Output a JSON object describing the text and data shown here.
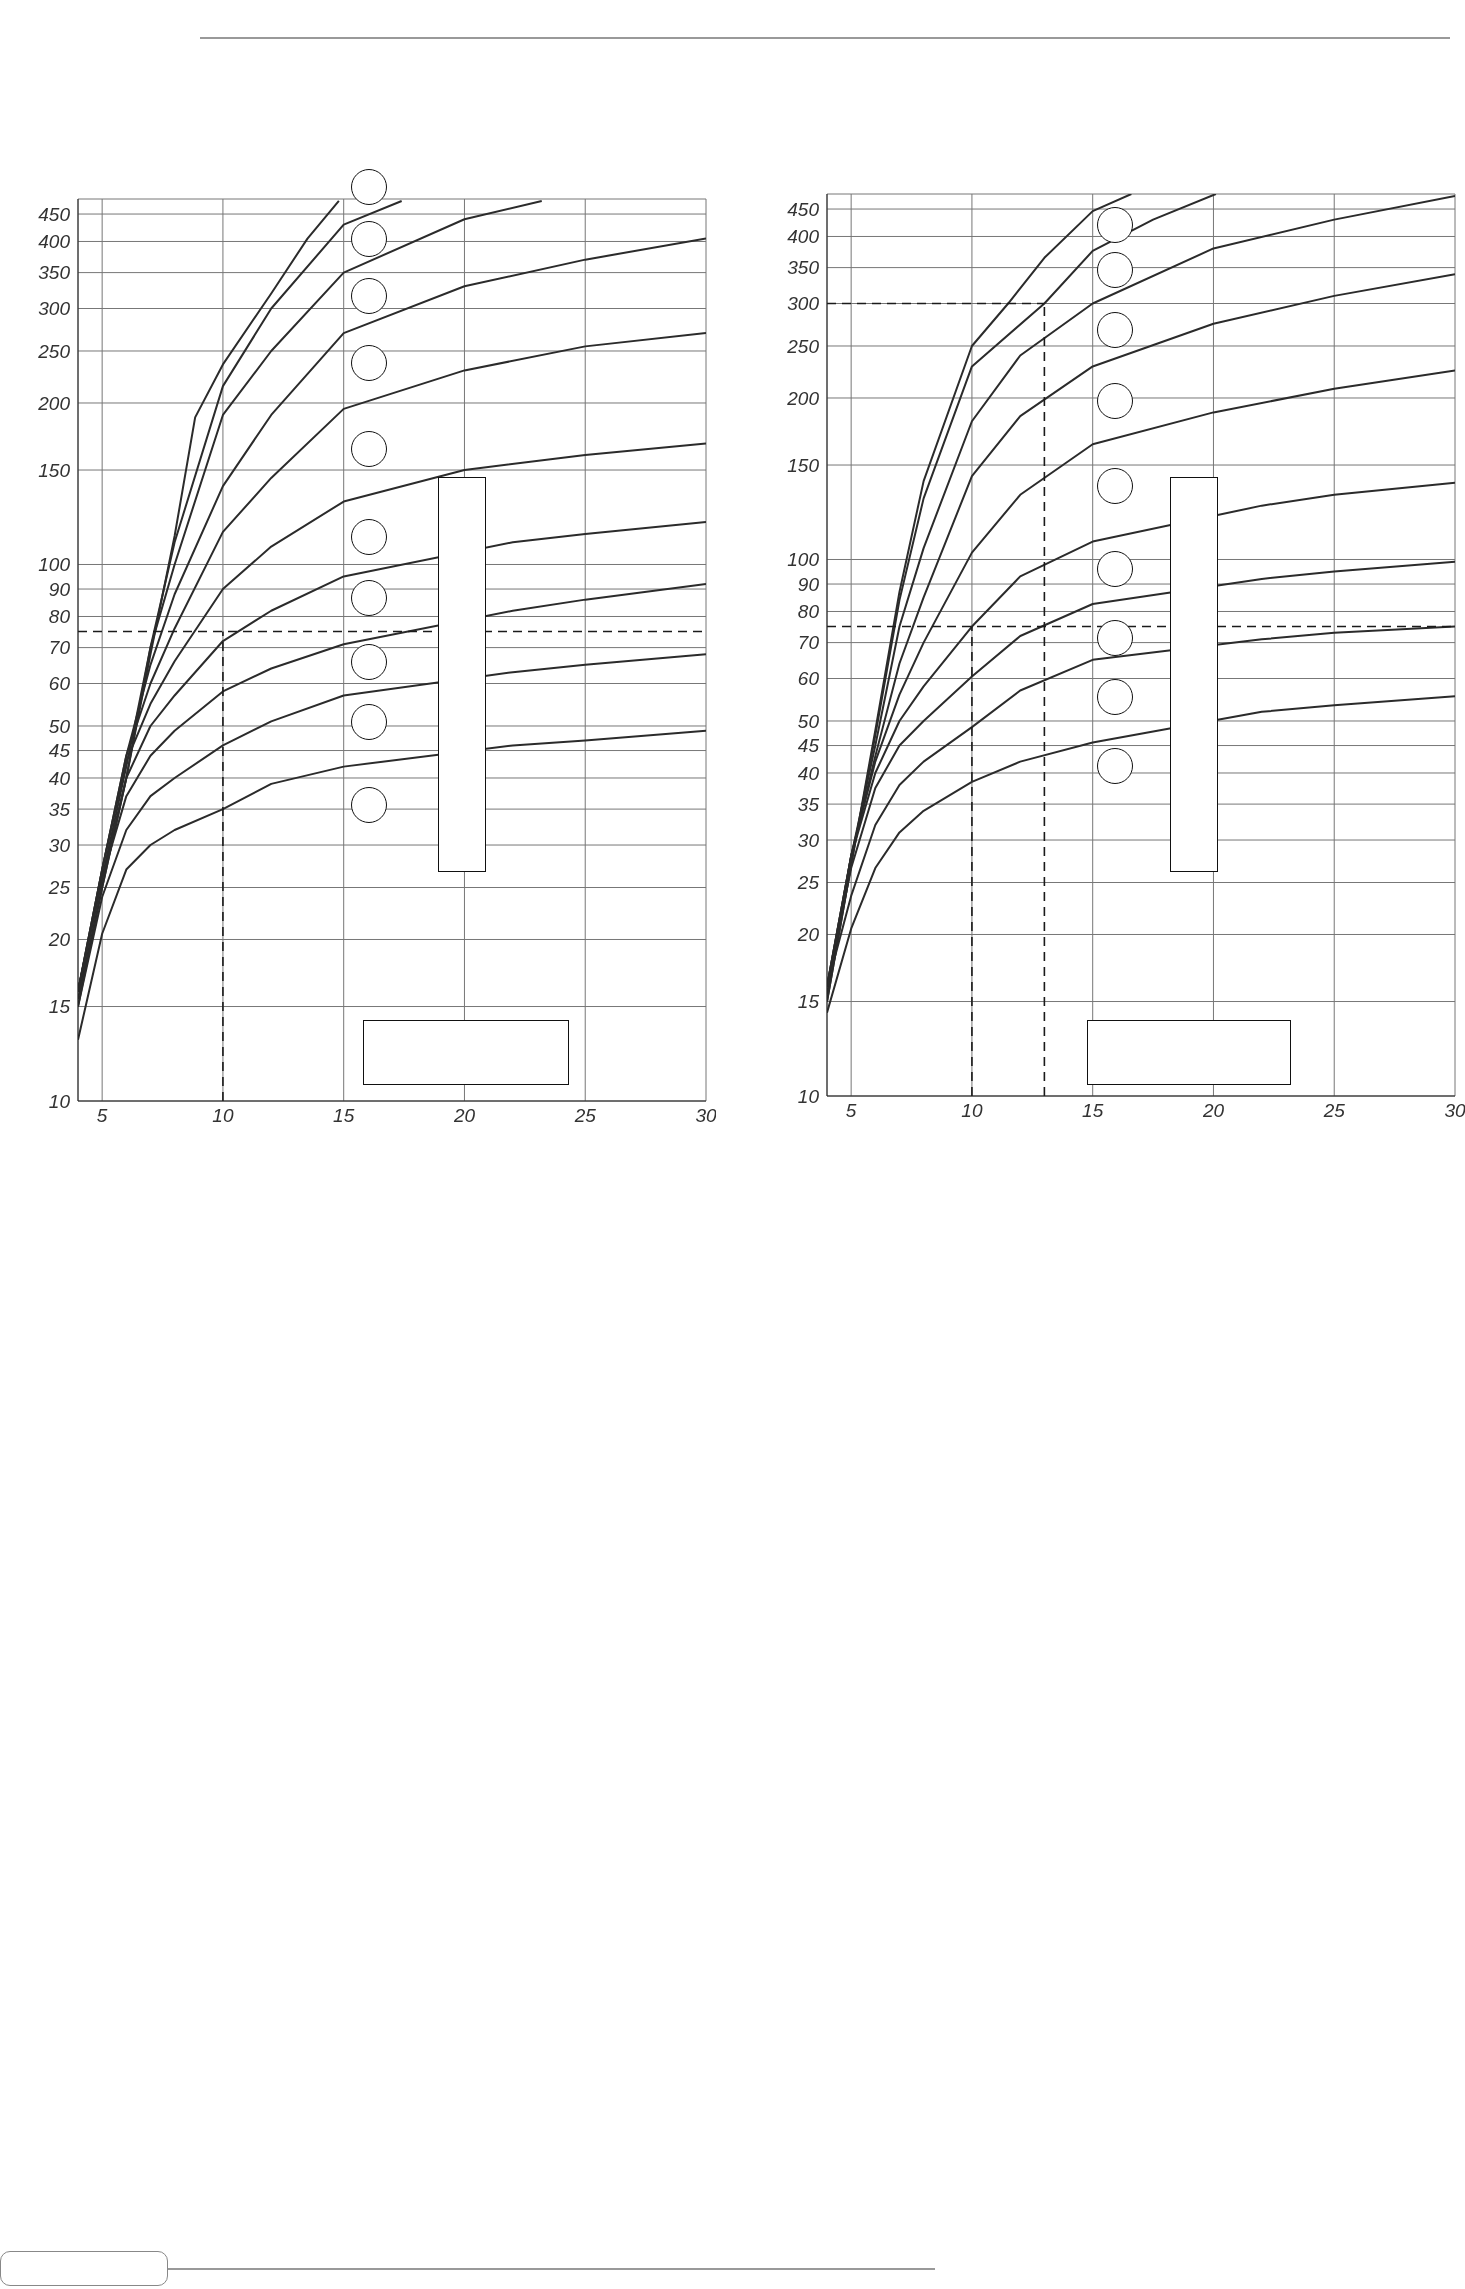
{
  "chart_data": [
    {
      "type": "line",
      "xlim": [
        4,
        30
      ],
      "xticks": [
        5,
        10,
        15,
        20,
        25,
        30
      ],
      "ylim": [
        10,
        480
      ],
      "yticks": [
        10,
        15,
        20,
        25,
        30,
        35,
        40,
        45,
        50,
        60,
        70,
        80,
        90,
        100,
        150,
        200,
        250,
        300,
        350,
        400,
        450
      ],
      "log": "y",
      "grid": true,
      "marker": "none",
      "line_style": "solid",
      "series": [
        {
          "color": "#2b2b2b",
          "x": [
            4,
            5,
            6,
            7,
            8,
            8.85,
            10,
            12,
            13.5,
            14.8
          ],
          "values": [
            15,
            25,
            40,
            68,
            113,
            188,
            236,
            320,
            405,
            476
          ]
        },
        {
          "color": "#2b2b2b",
          "x": [
            4,
            5,
            6,
            7,
            8,
            10,
            12,
            15,
            17.4
          ],
          "values": [
            15.5,
            25,
            40,
            70,
            110,
            215,
            300,
            430,
            476
          ]
        },
        {
          "color": "#2b2b2b",
          "x": [
            4,
            5,
            6,
            7,
            8,
            10,
            12,
            15,
            20,
            23.2
          ],
          "values": [
            16,
            26,
            42,
            70,
            100,
            190,
            250,
            350,
            440,
            476
          ]
        },
        {
          "color": "#2b2b2b",
          "x": [
            4,
            5,
            6,
            7,
            8,
            10,
            12,
            15,
            20,
            25,
            30
          ],
          "values": [
            16,
            27,
            44,
            65,
            88,
            140,
            190,
            270,
            330,
            370,
            405
          ]
        },
        {
          "color": "#2b2b2b",
          "x": [
            4,
            5,
            6,
            7,
            8,
            10,
            12,
            15,
            20,
            25,
            30
          ],
          "values": [
            16,
            27,
            44,
            60,
            76,
            115,
            145,
            195,
            230,
            255,
            270
          ]
        },
        {
          "color": "#2b2b2b",
          "x": [
            4,
            5,
            6,
            7,
            8,
            10,
            12,
            15,
            20,
            25,
            30
          ],
          "values": [
            16,
            27,
            43,
            55,
            66,
            90,
            108,
            131,
            150,
            160,
            168
          ]
        },
        {
          "color": "#2b2b2b",
          "x": [
            4,
            5,
            6,
            7,
            8,
            10,
            12,
            15,
            22,
            25,
            30
          ],
          "values": [
            16,
            26,
            40,
            50,
            57,
            72,
            82,
            95,
            110,
            114,
            120
          ]
        },
        {
          "color": "#2b2b2b",
          "x": [
            4,
            5,
            6,
            7,
            8,
            10,
            12,
            15,
            22,
            25,
            30
          ],
          "values": [
            16,
            26,
            37,
            44,
            49,
            58,
            64,
            71,
            82,
            86,
            92
          ]
        },
        {
          "color": "#2b2b2b",
          "x": [
            4,
            5,
            6,
            7,
            8,
            10,
            12,
            15,
            22,
            25,
            30
          ],
          "values": [
            15,
            24,
            32,
            37,
            40,
            46,
            51,
            57,
            63,
            65,
            68
          ]
        },
        {
          "color": "#2b2b2b",
          "x": [
            4,
            5,
            6,
            7,
            8,
            10,
            12,
            15,
            22,
            25,
            30
          ],
          "values": [
            13,
            20.5,
            27,
            30,
            32,
            35,
            39,
            42,
            46,
            47,
            49
          ]
        },
        {
          "color": "#1a1a1a",
          "line_style": "dashed",
          "x": [
            4,
            30
          ],
          "values": [
            75,
            75
          ]
        },
        {
          "color": "#1a1a1a",
          "line_style": "dashed",
          "x": [
            10,
            10
          ],
          "values": [
            10,
            75
          ]
        }
      ]
    },
    {
      "type": "line",
      "xlim": [
        4,
        30
      ],
      "xticks": [
        5,
        10,
        15,
        20,
        25,
        30
      ],
      "ylim": [
        10,
        480
      ],
      "yticks": [
        10,
        15,
        20,
        25,
        30,
        35,
        40,
        45,
        50,
        60,
        70,
        80,
        90,
        100,
        150,
        200,
        250,
        300,
        350,
        400,
        450
      ],
      "log": "y",
      "grid": true,
      "marker": "none",
      "line_style": "solid",
      "series": [
        {
          "color": "#2b2b2b",
          "x": [
            4,
            5,
            6,
            7,
            8,
            10,
            11.5,
            13,
            15,
            16.6
          ],
          "values": [
            15,
            27,
            48,
            87,
            140,
            250,
            300,
            365,
            446,
            480
          ]
        },
        {
          "color": "#2b2b2b",
          "x": [
            4,
            5,
            6,
            7,
            8,
            10,
            13,
            15,
            17.5,
            20.1
          ],
          "values": [
            15,
            27,
            47,
            84,
            130,
            229,
            300,
            376,
            430,
            480
          ]
        },
        {
          "color": "#2b2b2b",
          "x": [
            4,
            5,
            6,
            7,
            8,
            10,
            12,
            15,
            20,
            25,
            30
          ],
          "values": [
            15.5,
            28,
            45,
            75,
            105,
            181,
            240,
            300,
            380,
            430,
            476
          ]
        },
        {
          "color": "#2b2b2b",
          "x": [
            4,
            5,
            6,
            7,
            8,
            10,
            12,
            15,
            20,
            25,
            30
          ],
          "values": [
            16,
            28,
            43,
            64,
            85,
            143,
            185,
            229,
            275,
            310,
            340
          ]
        },
        {
          "color": "#2b2b2b",
          "x": [
            4,
            5,
            6,
            7,
            8,
            10,
            12,
            15,
            20,
            25,
            30
          ],
          "values": [
            16,
            28,
            42,
            56,
            70,
            103,
            132,
            164,
            188,
            208,
            225
          ]
        },
        {
          "color": "#2b2b2b",
          "x": [
            4,
            5,
            6,
            7,
            8,
            10,
            12,
            15,
            22,
            25,
            30
          ],
          "values": [
            16,
            28,
            40,
            50,
            58,
            75,
            93,
            108,
            126,
            132,
            139
          ]
        },
        {
          "color": "#2b2b2b",
          "x": [
            4,
            5,
            6,
            7,
            8,
            10,
            12,
            15,
            22,
            25,
            30
          ],
          "values": [
            16,
            26.6,
            37.5,
            45,
            50,
            60.5,
            72,
            82.6,
            92,
            95,
            99
          ]
        },
        {
          "color": "#2b2b2b",
          "x": [
            4,
            5,
            6,
            7,
            8,
            10,
            12,
            15,
            22,
            25,
            30
          ],
          "values": [
            16,
            23.6,
            32,
            38,
            42,
            48.7,
            57,
            65,
            71,
            73,
            75
          ]
        },
        {
          "color": "#2b2b2b",
          "x": [
            4,
            5,
            6,
            7,
            8,
            10,
            12,
            15,
            22,
            25,
            30
          ],
          "values": [
            14.3,
            20.5,
            26.6,
            31,
            34,
            38.5,
            42,
            45.6,
            52,
            53.5,
            55.6
          ]
        },
        {
          "color": "#1a1a1a",
          "line_style": "dashed",
          "x": [
            4,
            30
          ],
          "values": [
            75,
            75
          ]
        },
        {
          "color": "#1a1a1a",
          "line_style": "dashed",
          "x": [
            10,
            10
          ],
          "values": [
            10,
            75
          ]
        },
        {
          "color": "#1a1a1a",
          "line_style": "dashed",
          "x": [
            13,
            13
          ],
          "values": [
            10,
            300
          ]
        },
        {
          "color": "#1a1a1a",
          "line_style": "dashed",
          "x": [
            4,
            13
          ],
          "values": [
            300,
            300
          ]
        }
      ]
    }
  ]
}
